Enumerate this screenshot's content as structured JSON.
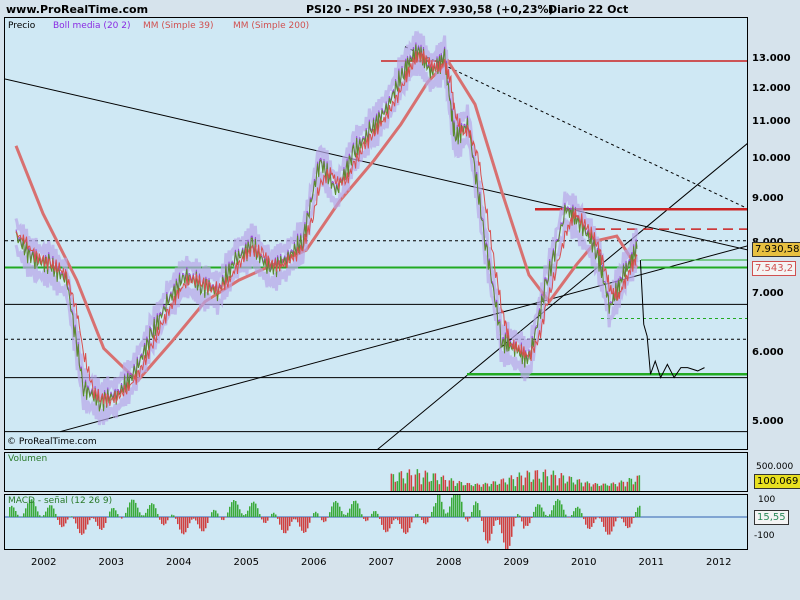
{
  "header": {
    "site": "www.ProRealTime.com",
    "title": "PSI20 - PSI 20 INDEX",
    "price": "7.930,58 (+0,23%)",
    "timeframe": "Diario",
    "date": "22 Oct"
  },
  "legend": {
    "price": "Precio",
    "boll": "Boll media (20 2)",
    "mm39": "MM (Simple 39)",
    "mm200": "MM (Simple 200)"
  },
  "watermark": "© ProRealTime.com",
  "volume_label": "Volumen",
  "macd_label": "MACD - señal (12 26 9)",
  "price_tags": {
    "last": "7.930,58",
    "ma": "7.543,2"
  },
  "volume_tags": {
    "scale": "500.000",
    "last": "100.069"
  },
  "macd_tags": {
    "top": "100",
    "bottom": "-100",
    "last": "15,55"
  },
  "colors": {
    "price": "#5b8c2a",
    "boll": "#9a4ad6",
    "mm39": "#d85050",
    "mm200": "#d87070",
    "support": "#22aa22",
    "resistance": "#cc2222",
    "bg_chart": "#cfe8f4",
    "bg_page": "#d6e3ec"
  },
  "chart_data": [
    {
      "type": "line",
      "title": "PSI20 - PSI 20 INDEX",
      "x_ticks": [
        "2002",
        "2003",
        "2004",
        "2005",
        "2006",
        "2007",
        "2008",
        "2009",
        "2010",
        "2011",
        "2012"
      ],
      "y_ticks": [
        "13.000",
        "12.000",
        "11.000",
        "10.000",
        "9.000",
        "8.000",
        "7.000",
        "6.000",
        "5.000"
      ],
      "y_scale": "log",
      "ylim": [
        4800,
        13800
      ],
      "series": [
        {
          "name": "Precio",
          "x": [
            2001.6,
            2001.85,
            2002.1,
            2002.35,
            2002.6,
            2002.85,
            2003.1,
            2003.35,
            2003.6,
            2003.85,
            2004.1,
            2004.35,
            2004.6,
            2004.85,
            2005.1,
            2005.35,
            2005.6,
            2005.85,
            2006.1,
            2006.35,
            2006.6,
            2006.85,
            2007.1,
            2007.35,
            2007.55,
            2007.75,
            2007.95,
            2008.1,
            2008.3,
            2008.55,
            2008.8,
            2009.0,
            2009.2,
            2009.45,
            2009.75,
            2009.95,
            2010.2,
            2010.4,
            2010.6,
            2010.8
          ],
          "values": [
            8200,
            7700,
            7600,
            7300,
            5500,
            5300,
            5400,
            5700,
            6300,
            6900,
            7400,
            7200,
            7100,
            7700,
            8000,
            7500,
            7700,
            8100,
            10000,
            9200,
            10200,
            10800,
            11500,
            12700,
            13400,
            12600,
            13100,
            10600,
            11000,
            8100,
            6200,
            6100,
            5900,
            7200,
            8800,
            8500,
            7900,
            6800,
            7400,
            7930
          ]
        },
        {
          "name": "MM (Simple 200)",
          "x": [
            2001.6,
            2002.0,
            2002.5,
            2002.9,
            2003.4,
            2003.9,
            2004.4,
            2004.9,
            2005.4,
            2005.9,
            2006.4,
            2006.9,
            2007.3,
            2007.7,
            2008.0,
            2008.4,
            2008.8,
            2009.2,
            2009.5,
            2009.9,
            2010.2,
            2010.5,
            2010.8
          ],
          "values": [
            10400,
            8700,
            7300,
            6100,
            5600,
            6200,
            6900,
            7300,
            7600,
            7900,
            9000,
            10000,
            11000,
            12300,
            13000,
            11600,
            9200,
            7400,
            6900,
            7600,
            8100,
            8200,
            7543
          ]
        }
      ],
      "levels": [
        {
          "name": "resistance",
          "value": 13000
        },
        {
          "name": "resistance",
          "value": 8800
        },
        {
          "name": "support",
          "value": 7550
        },
        {
          "name": "support",
          "value": 5700
        }
      ]
    },
    {
      "type": "bar",
      "title": "Volumen",
      "yticks": [
        "500.000"
      ],
      "last": 100069
    },
    {
      "type": "bar",
      "title": "MACD - señal (12 26 9)",
      "yticks": [
        100,
        -100
      ],
      "last": 15.55
    }
  ]
}
